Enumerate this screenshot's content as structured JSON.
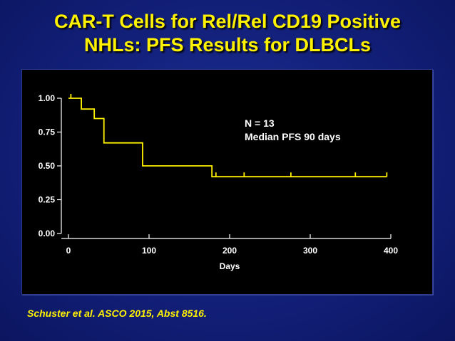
{
  "slide": {
    "title_line1": "CAR-T Cells for Rel/Rel CD19 Positive",
    "title_line2": "NHLs: PFS Results for DLBCLs",
    "citation": "Schuster et al. ASCO 2015, Abst 8516."
  },
  "colors": {
    "title": "#fff200",
    "curve": "#fff200",
    "axis_text": "#ffffff",
    "chart_bg": "#000000"
  },
  "chart_data": {
    "type": "line",
    "step": true,
    "title": "",
    "xlabel": "Days",
    "ylabel": "",
    "xlim": [
      0,
      400
    ],
    "ylim": [
      0,
      1
    ],
    "x_ticks": [
      "0",
      "100",
      "200",
      "300",
      "400"
    ],
    "y_ticks": [
      "0.00",
      "0.25",
      "0.50",
      "0.75",
      "1.00"
    ],
    "grid": false,
    "series": [
      {
        "x": [
          0,
          16,
          32,
          44,
          92,
          178,
          395
        ],
        "y": [
          1.0,
          0.92,
          0.85,
          0.67,
          0.5,
          0.42,
          0.42
        ]
      }
    ],
    "censor_marks": {
      "x": [
        3,
        183,
        218,
        276,
        356,
        395
      ],
      "y": [
        1.0,
        0.42,
        0.42,
        0.42,
        0.42,
        0.42
      ]
    },
    "annotations": [
      "N = 13",
      "Median PFS 90 days"
    ]
  }
}
